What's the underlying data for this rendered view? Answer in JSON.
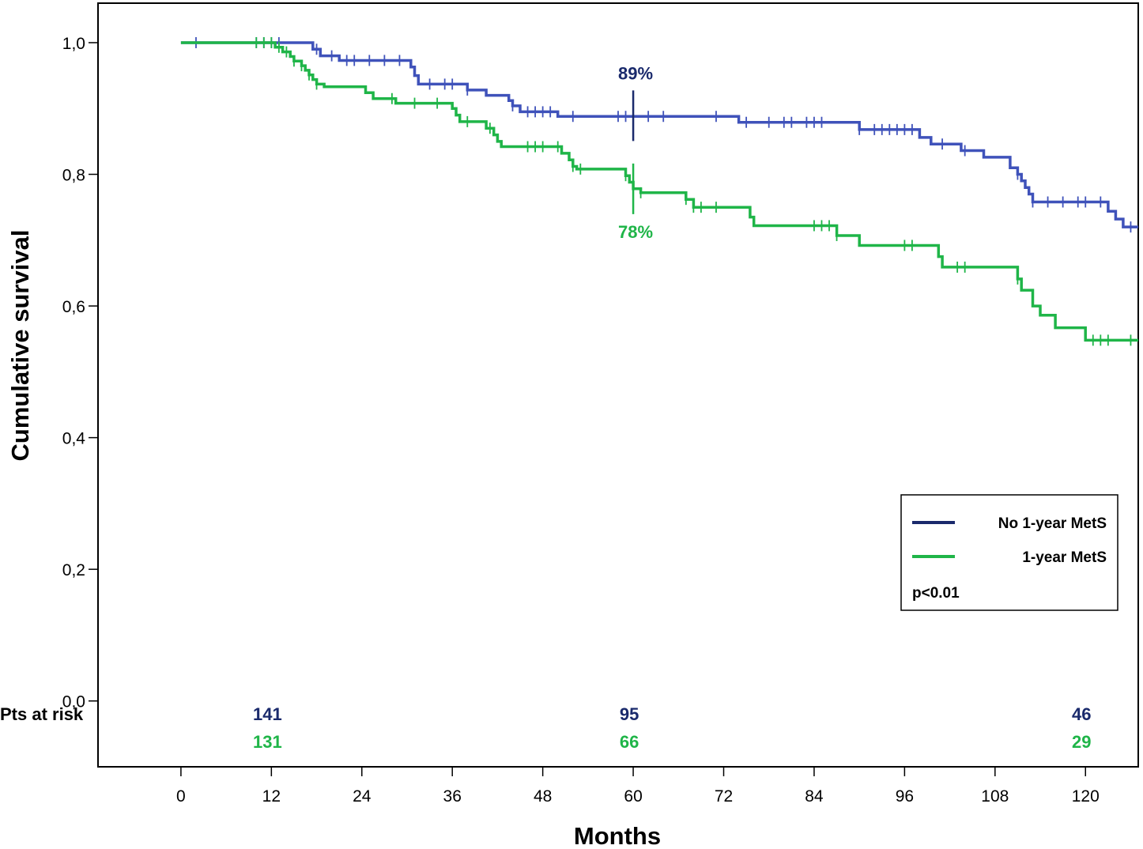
{
  "chart_data": {
    "type": "line",
    "title": "",
    "xlabel": "Months",
    "ylabel": "Cumulative survival",
    "xlim": [
      -11,
      127
    ],
    "ylim": [
      -0.1,
      1.06
    ],
    "x_ticks": [
      0,
      12,
      24,
      36,
      48,
      60,
      72,
      84,
      96,
      108,
      120
    ],
    "x_tick_labels": [
      "0",
      "12",
      "24",
      "36",
      "48",
      "60",
      "72",
      "84",
      "96",
      "108",
      "120"
    ],
    "y_ticks": [
      0.0,
      0.2,
      0.4,
      0.6,
      0.8,
      1.0
    ],
    "y_tick_labels": [
      "0,0",
      "0,2",
      "0,4",
      "0,6",
      "0,8",
      "1,0"
    ],
    "grid": false,
    "legend_position": "bottom-right",
    "series": [
      {
        "name": "No 1-year MetS",
        "color": "#3f52ba",
        "legend_color": "#1a2a6c",
        "step_points": [
          [
            0,
            1.0
          ],
          [
            17,
            1.0
          ],
          [
            17.5,
            0.99
          ],
          [
            18.5,
            0.98
          ],
          [
            21,
            0.973
          ],
          [
            30.5,
            0.963
          ],
          [
            31,
            0.95
          ],
          [
            31.5,
            0.937
          ],
          [
            38,
            0.928
          ],
          [
            40.5,
            0.92
          ],
          [
            43.5,
            0.912
          ],
          [
            44,
            0.904
          ],
          [
            45,
            0.895
          ],
          [
            50,
            0.888
          ],
          [
            74,
            0.879
          ],
          [
            90,
            0.868
          ],
          [
            98,
            0.856
          ],
          [
            99.5,
            0.846
          ],
          [
            103.5,
            0.836
          ],
          [
            106.5,
            0.826
          ],
          [
            110,
            0.81
          ],
          [
            111,
            0.8
          ],
          [
            111.5,
            0.79
          ],
          [
            112,
            0.78
          ],
          [
            112.5,
            0.77
          ],
          [
            113,
            0.758
          ],
          [
            123,
            0.744
          ],
          [
            124,
            0.732
          ],
          [
            125,
            0.72
          ],
          [
            127,
            0.72
          ]
        ],
        "censor_x": [
          2,
          10,
          11,
          12,
          13,
          18,
          20,
          22,
          23,
          25,
          27,
          29,
          33,
          35,
          36,
          38,
          44,
          46,
          47,
          48,
          49,
          52,
          58,
          59,
          60,
          62,
          64,
          71,
          75,
          78,
          80,
          81,
          83,
          84,
          85,
          90,
          92,
          93,
          94,
          95,
          96,
          97,
          101,
          104,
          111,
          113,
          115,
          117,
          119,
          120,
          122,
          126
        ]
      },
      {
        "name": "1-year MetS",
        "color": "#1fb548",
        "legend_color": "#1fb548",
        "step_points": [
          [
            0,
            1.0
          ],
          [
            11.5,
            1.0
          ],
          [
            12.5,
            0.993
          ],
          [
            13.5,
            0.986
          ],
          [
            14.5,
            0.979
          ],
          [
            15,
            0.972
          ],
          [
            16,
            0.965
          ],
          [
            16.5,
            0.958
          ],
          [
            17,
            0.951
          ],
          [
            17.5,
            0.944
          ],
          [
            18,
            0.937
          ],
          [
            19,
            0.933
          ],
          [
            24.5,
            0.924
          ],
          [
            25.5,
            0.915
          ],
          [
            28.5,
            0.908
          ],
          [
            36,
            0.9
          ],
          [
            36.5,
            0.89
          ],
          [
            37,
            0.88
          ],
          [
            40.5,
            0.87
          ],
          [
            41.5,
            0.86
          ],
          [
            42,
            0.85
          ],
          [
            42.5,
            0.842
          ],
          [
            50.5,
            0.832
          ],
          [
            51.5,
            0.822
          ],
          [
            52,
            0.812
          ],
          [
            52.5,
            0.808
          ],
          [
            59,
            0.798
          ],
          [
            59.5,
            0.788
          ],
          [
            60,
            0.778
          ],
          [
            61,
            0.772
          ],
          [
            67,
            0.762
          ],
          [
            68,
            0.75
          ],
          [
            75.5,
            0.735
          ],
          [
            76,
            0.722
          ],
          [
            87,
            0.707
          ],
          [
            90,
            0.692
          ],
          [
            100.5,
            0.675
          ],
          [
            101,
            0.659
          ],
          [
            111,
            0.641
          ],
          [
            111.5,
            0.624
          ],
          [
            113,
            0.6
          ],
          [
            114,
            0.586
          ],
          [
            116,
            0.567
          ],
          [
            120,
            0.548
          ],
          [
            127,
            0.548
          ]
        ],
        "censor_x": [
          10,
          11,
          12,
          13,
          14,
          15,
          16,
          17,
          18,
          28,
          31,
          34,
          38,
          41,
          46,
          47,
          48,
          50,
          52,
          53,
          59,
          61,
          67,
          68,
          69,
          71,
          84,
          85,
          86,
          87,
          96,
          97,
          103,
          104,
          111,
          121,
          122,
          123,
          126
        ]
      }
    ],
    "annotations": [
      {
        "text": "89%",
        "x": 60,
        "y": 0.889,
        "color": "#1a2a6c",
        "placement": "above"
      },
      {
        "text": "78%",
        "x": 60,
        "y": 0.778,
        "color": "#1fb548",
        "placement": "below"
      }
    ],
    "p_value": "p<0.01",
    "risk_table": {
      "label": "Pts at risk",
      "times": [
        12,
        60,
        120
      ],
      "rows": [
        {
          "series": "No 1-year MetS",
          "color": "#1a2a6c",
          "values": [
            "141",
            "95",
            "46"
          ]
        },
        {
          "series": "1-year MetS",
          "color": "#1fb548",
          "values": [
            "131",
            "66",
            "29"
          ]
        }
      ]
    }
  }
}
